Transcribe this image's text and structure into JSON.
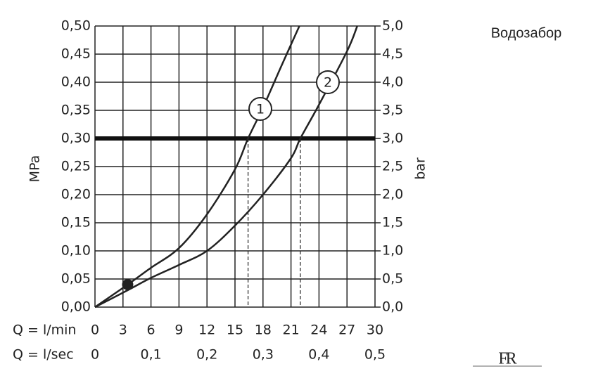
{
  "chart_data": {
    "type": "line",
    "title": "Водозабор",
    "logo": "FR",
    "ylabel": "MPa",
    "y2label": "bar",
    "xlabel": "Q = l/min",
    "x2label": "Q = l/sec",
    "xlim": [
      0,
      30
    ],
    "xticks": [
      0,
      3,
      6,
      9,
      12,
      15,
      18,
      21,
      24,
      27,
      30
    ],
    "x2lim": [
      0,
      0.5
    ],
    "x2ticks": [
      0,
      {
        "value": 0.1,
        "label": "0,1"
      },
      {
        "value": 0.2,
        "label": "0,2"
      },
      {
        "value": 0.3,
        "label": "0,3"
      },
      {
        "value": 0.4,
        "label": "0,4"
      },
      {
        "value": 0.5,
        "label": "0,5"
      }
    ],
    "ylim": [
      0,
      0.5
    ],
    "yticks": [
      {
        "value": 0,
        "label": "0,00"
      },
      {
        "value": 0.05,
        "label": "0,05"
      },
      {
        "value": 0.1,
        "label": "0,10"
      },
      {
        "value": 0.15,
        "label": "0,15"
      },
      {
        "value": 0.2,
        "label": "0,20"
      },
      {
        "value": 0.25,
        "label": "0,25"
      },
      {
        "value": 0.3,
        "label": "0,30"
      },
      {
        "value": 0.35,
        "label": "0,35"
      },
      {
        "value": 0.4,
        "label": "0,40"
      },
      {
        "value": 0.45,
        "label": "0,45"
      },
      {
        "value": 0.5,
        "label": "0,50"
      }
    ],
    "y2lim": [
      0,
      5
    ],
    "y2ticks": [
      {
        "value": 0,
        "label": "0,0"
      },
      {
        "value": 0.5,
        "label": "0,5"
      },
      {
        "value": 1,
        "label": "1,0"
      },
      {
        "value": 1.5,
        "label": "1,5"
      },
      {
        "value": 2,
        "label": "2,0"
      },
      {
        "value": 2.5,
        "label": "2,5"
      },
      {
        "value": 3,
        "label": "3,0"
      },
      {
        "value": 3.5,
        "label": "3,5"
      },
      {
        "value": 4,
        "label": "4,0"
      },
      {
        "value": 4.5,
        "label": "4,5"
      },
      {
        "value": 5,
        "label": "5,0"
      }
    ],
    "grid": true,
    "series": [
      {
        "name": "1",
        "color": "#222222",
        "x": [
          0,
          3.5,
          6,
          9,
          12,
          15,
          16.4,
          18,
          20,
          21.9
        ],
        "values": [
          0,
          0.04,
          0.07,
          0.105,
          0.165,
          0.245,
          0.3,
          0.355,
          0.43,
          0.5
        ]
      },
      {
        "name": "2",
        "color": "#222222",
        "x": [
          0,
          3.5,
          6,
          9,
          12,
          15,
          18,
          21,
          22,
          24,
          27,
          28.1
        ],
        "values": [
          0,
          0.03,
          0.052,
          0.075,
          0.1,
          0.145,
          0.2,
          0.265,
          0.3,
          0.36,
          0.455,
          0.5
        ]
      }
    ],
    "point": {
      "x": 3.5,
      "y": 0.04
    },
    "hline": 0.3,
    "vlines": [
      16.4,
      22
    ]
  }
}
